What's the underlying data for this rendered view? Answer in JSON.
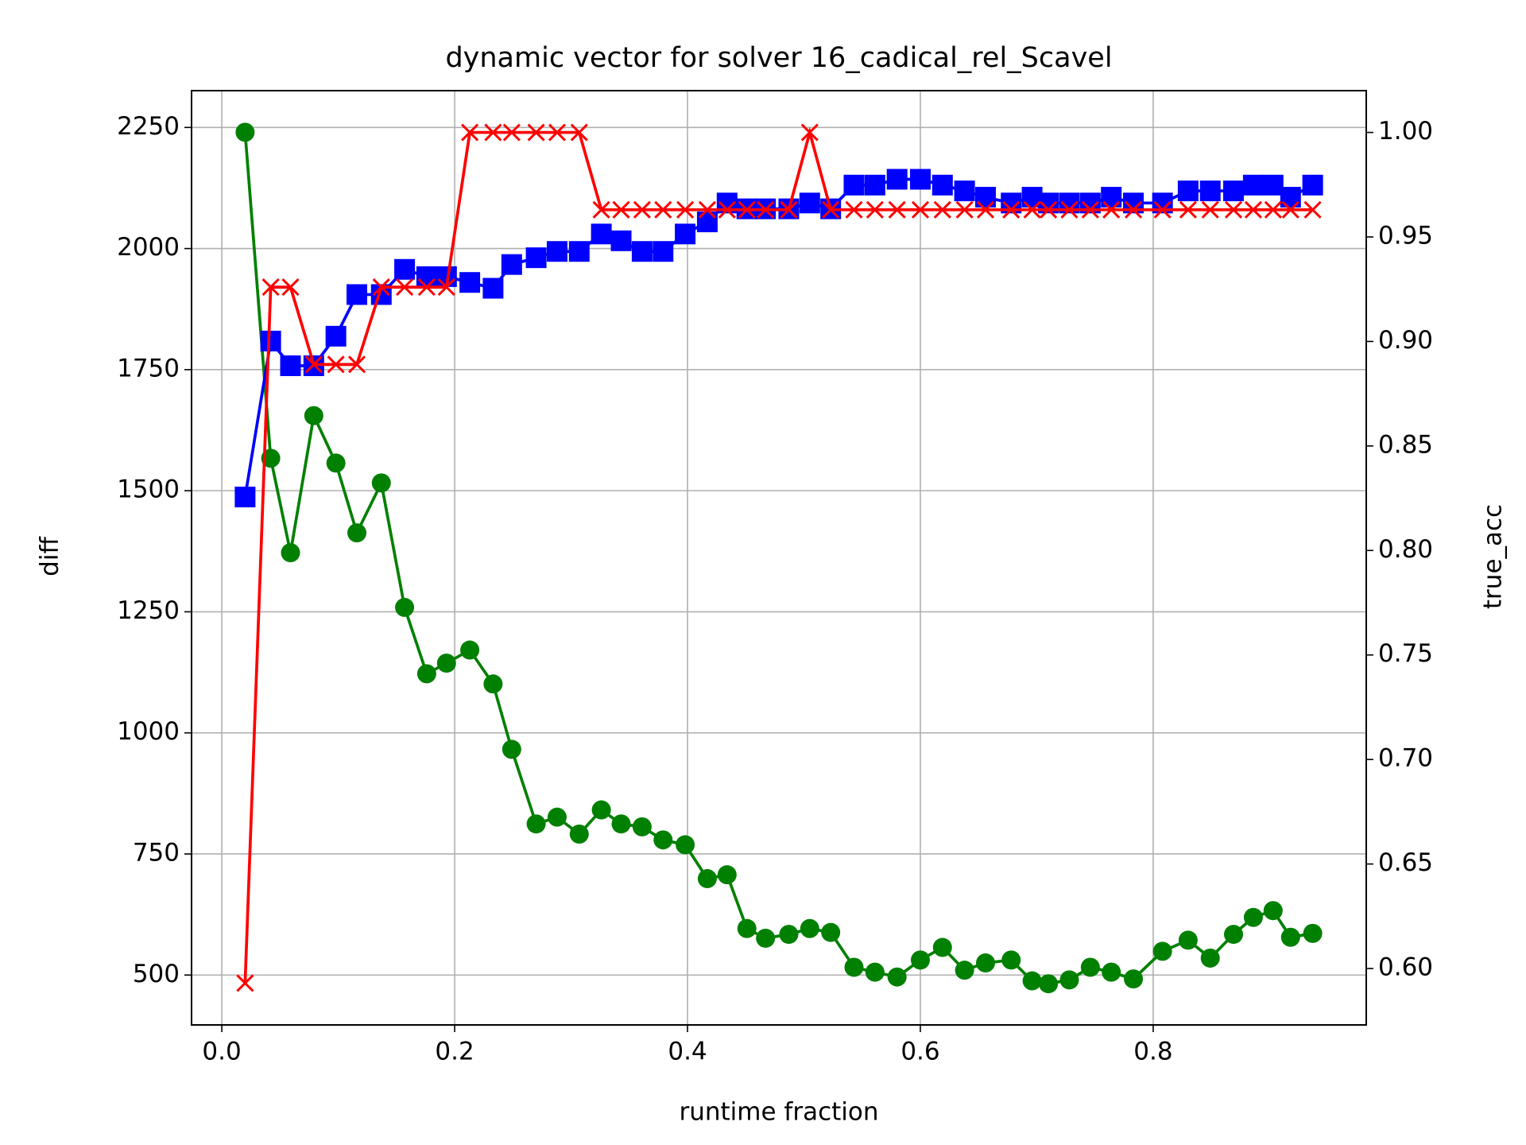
{
  "chart_data": {
    "type": "line",
    "title": "dynamic vector for solver 16_cadical_rel_Scavel",
    "xlabel": "runtime fraction",
    "ylabel": "diff",
    "y2label": "true_acc",
    "ylabel_color": "green",
    "y2label_color": "red",
    "x": [
      0.02,
      0.042,
      0.059,
      0.079,
      0.098,
      0.116,
      0.137,
      0.157,
      0.176,
      0.193,
      0.213,
      0.233,
      0.249,
      0.27,
      0.288,
      0.307,
      0.326,
      0.343,
      0.361,
      0.379,
      0.398,
      0.417,
      0.434,
      0.451,
      0.467,
      0.487,
      0.505,
      0.523,
      0.543,
      0.561,
      0.58,
      0.6,
      0.619,
      0.638,
      0.656,
      0.678,
      0.696,
      0.71,
      0.728,
      0.746,
      0.764,
      0.783,
      0.808,
      0.83,
      0.849,
      0.869,
      0.886,
      0.903,
      0.918,
      0.937
    ],
    "series": [
      {
        "color": "green",
        "marker": "o",
        "axis": "y",
        "values": [
          2240,
          1567,
          1372,
          1655,
          1557,
          1413,
          1516,
          1259,
          1122,
          1144,
          1171,
          1101,
          966,
          812,
          826,
          791,
          841,
          812,
          806,
          779,
          769,
          699,
          707,
          596,
          576,
          584,
          596,
          588,
          516,
          506,
          496,
          531,
          557,
          510,
          525,
          531,
          488,
          482,
          490,
          516,
          506,
          492,
          549,
          572,
          535,
          584,
          619,
          633,
          578,
          586
        ]
      },
      {
        "color": "blue",
        "marker": "s",
        "axis": "y",
        "values": [
          1487,
          1809,
          1758,
          1758,
          1819,
          1905,
          1905,
          1957,
          1942,
          1942,
          1930,
          1918,
          1967,
          1981,
          1994,
          1994,
          2030,
          2016,
          1994,
          1994,
          2030,
          2055,
          2094,
          2082,
          2082,
          2082,
          2094,
          2082,
          2131,
          2131,
          2143,
          2143,
          2131,
          2119,
          2106,
          2094,
          2106,
          2094,
          2094,
          2094,
          2106,
          2094,
          2094,
          2119,
          2119,
          2119,
          2131,
          2131,
          2106,
          2131
        ]
      },
      {
        "color": "red",
        "marker": "x",
        "axis": "y2",
        "values": [
          0.593,
          0.926,
          0.926,
          0.889,
          0.889,
          0.889,
          0.926,
          0.926,
          0.926,
          0.926,
          1.0,
          1.0,
          1.0,
          1.0,
          1.0,
          1.0,
          0.963,
          0.963,
          0.963,
          0.963,
          0.963,
          0.963,
          0.963,
          0.963,
          0.963,
          0.963,
          1.0,
          0.963,
          0.963,
          0.963,
          0.963,
          0.963,
          0.963,
          0.963,
          0.963,
          0.963,
          0.963,
          0.963,
          0.963,
          0.963,
          0.963,
          0.963,
          0.963,
          0.963,
          0.963,
          0.963,
          0.963,
          0.963,
          0.963,
          0.963
        ]
      }
    ],
    "xlim": [
      -0.026,
      0.983
    ],
    "xticks": [
      {
        "value": 0,
        "label": "0.0"
      },
      0.2,
      0.4,
      0.6,
      0.8
    ],
    "ylim": [
      397,
      2326
    ],
    "yticks": [
      500,
      750,
      1000,
      1250,
      1500,
      1750,
      2000,
      2250
    ],
    "y2lim": [
      0.573,
      1.02
    ],
    "y2ticks": [
      {
        "value": 0.6,
        "label": "0.60"
      },
      {
        "value": 0.65,
        "label": "0.65"
      },
      {
        "value": 0.7,
        "label": "0.70"
      },
      {
        "value": 0.75,
        "label": "0.75"
      },
      {
        "value": 0.8,
        "label": "0.80"
      },
      {
        "value": 0.85,
        "label": "0.85"
      },
      {
        "value": 0.9,
        "label": "0.90"
      },
      {
        "value": 0.95,
        "label": "0.95"
      },
      {
        "value": 1.0,
        "label": "1.00"
      }
    ],
    "grid": true
  }
}
